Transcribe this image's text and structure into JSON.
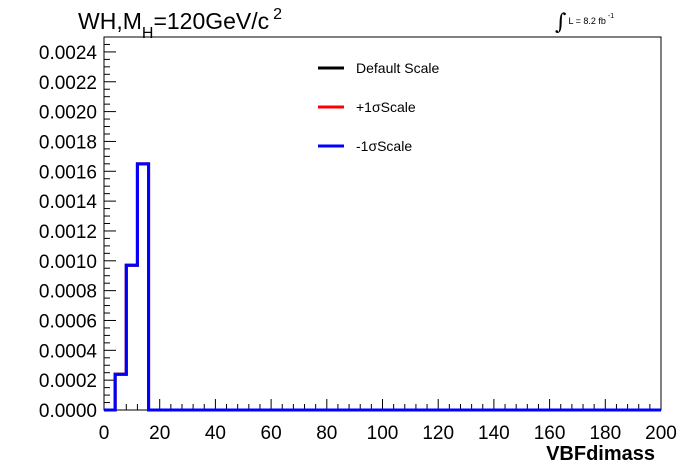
{
  "chart_data": {
    "type": "step",
    "title": {
      "prefix": "WH,M",
      "subscript": "H",
      "suffix": "=120GeV/c",
      "superscript": "2"
    },
    "lumi": {
      "integral": "∫",
      "text": "L = 8.2 fb",
      "sup": "-1"
    },
    "xlabel": "VBFdimass",
    "xlim": [
      0,
      200
    ],
    "ylim": [
      0,
      0.0025
    ],
    "x_ticks": [
      "0",
      "20",
      "40",
      "60",
      "80",
      "100",
      "120",
      "140",
      "160",
      "180",
      "200"
    ],
    "y_ticks": [
      "0.0000",
      "0.0002",
      "0.0004",
      "0.0006",
      "0.0008",
      "0.0010",
      "0.0012",
      "0.0014",
      "0.0016",
      "0.0018",
      "0.0020",
      "0.0022",
      "0.0024"
    ],
    "bin_edges": [
      0,
      4,
      8,
      12,
      16,
      200
    ],
    "legend_position": "top-center",
    "series": [
      {
        "name": "Default Scale",
        "color": "#000000",
        "values": [
          0.0,
          0.00024,
          0.00097,
          0.00165,
          0.0
        ]
      },
      {
        "name": "+1σScale",
        "color": "#ff0000",
        "values": [
          0.0,
          0.00024,
          0.00097,
          0.00165,
          0.0
        ]
      },
      {
        "name": "-1σScale",
        "color": "#0000ff",
        "values": [
          0.0,
          0.00024,
          0.00097,
          0.00165,
          0.0
        ]
      }
    ]
  }
}
